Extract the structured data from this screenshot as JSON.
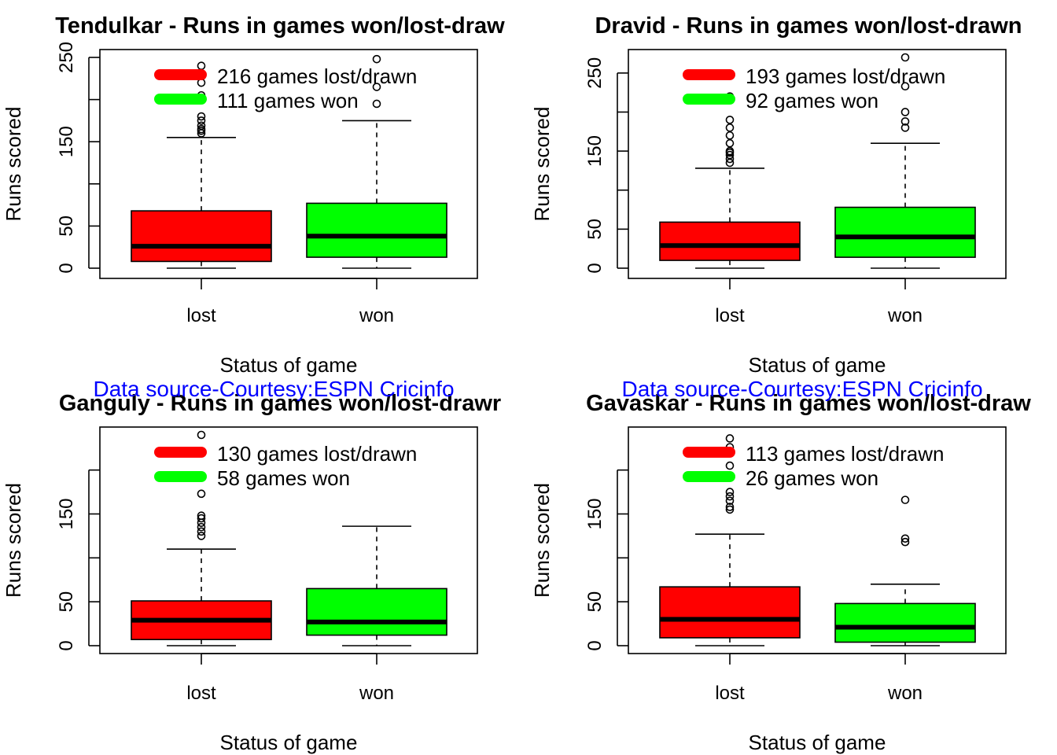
{
  "figure": {
    "source_note": "Data source-Courtesy:ESPN Cricinfo",
    "source_color": "#0000ff"
  },
  "chart_data": [
    {
      "type": "box",
      "title": "Tendulkar - Runs in games won/lost-draw",
      "xlabel": "Status of game",
      "ylabel": "Runs scored",
      "categories": [
        "lost",
        "won"
      ],
      "ylim": [
        0,
        250
      ],
      "yticks": [
        0,
        50,
        100,
        150,
        200,
        250
      ],
      "ytick_labels": [
        "0",
        "50",
        "",
        "150",
        "",
        "250"
      ],
      "boxes": [
        {
          "category": "lost",
          "color": "#ff0000",
          "min": 0,
          "q1": 8,
          "median": 26,
          "q3": 68,
          "max": 155,
          "outliers": [
            160,
            163,
            165,
            169,
            175,
            180,
            200,
            205,
            220,
            240
          ]
        },
        {
          "category": "won",
          "color": "#00ff00",
          "min": 0,
          "q1": 13,
          "median": 38,
          "q3": 77,
          "max": 175,
          "outliers": [
            195,
            215,
            248
          ]
        }
      ],
      "legend": [
        {
          "label": "216 games lost/drawn",
          "color": "#ff0000"
        },
        {
          "label": "111 games won",
          "color": "#00ff00"
        }
      ]
    },
    {
      "type": "box",
      "title": "Dravid - Runs in games won/lost-drawn",
      "xlabel": "Status of game",
      "ylabel": "Runs scored",
      "categories": [
        "lost",
        "won"
      ],
      "ylim": [
        0,
        270
      ],
      "yticks": [
        0,
        50,
        100,
        150,
        200,
        250
      ],
      "ytick_labels": [
        "0",
        "50",
        "",
        "150",
        "",
        "250"
      ],
      "boxes": [
        {
          "category": "lost",
          "color": "#ff0000",
          "min": 0,
          "q1": 10,
          "median": 29,
          "q3": 59,
          "max": 128,
          "outliers": [
            135,
            140,
            145,
            148,
            150,
            160,
            170,
            180,
            190,
            220
          ]
        },
        {
          "category": "won",
          "color": "#00ff00",
          "min": 0,
          "q1": 14,
          "median": 40,
          "q3": 78,
          "max": 160,
          "outliers": [
            180,
            188,
            200,
            233,
            270
          ]
        }
      ],
      "legend": [
        {
          "label": "193 games lost/drawn",
          "color": "#ff0000"
        },
        {
          "label": "92 games won",
          "color": "#00ff00"
        }
      ]
    },
    {
      "type": "box",
      "title": "Ganguly - Runs in games won/lost-drawr",
      "xlabel": "Status of game",
      "ylabel": "Runs scored",
      "categories": [
        "lost",
        "won"
      ],
      "ylim": [
        0,
        240
      ],
      "yticks": [
        0,
        50,
        100,
        150,
        200
      ],
      "ytick_labels": [
        "0",
        "50",
        "",
        "150",
        ""
      ],
      "boxes": [
        {
          "category": "lost",
          "color": "#ff0000",
          "min": 0,
          "q1": 7,
          "median": 29,
          "q3": 51,
          "max": 110,
          "outliers": [
            125,
            130,
            135,
            140,
            145,
            148,
            173,
            240
          ]
        },
        {
          "category": "won",
          "color": "#00ff00",
          "min": 0,
          "q1": 12,
          "median": 27,
          "q3": 65,
          "max": 136,
          "outliers": []
        }
      ],
      "legend": [
        {
          "label": "130 games lost/drawn",
          "color": "#ff0000"
        },
        {
          "label": "58 games won",
          "color": "#00ff00"
        }
      ]
    },
    {
      "type": "box",
      "title": "Gavaskar - Runs in games won/lost-draw",
      "xlabel": "Status of game",
      "ylabel": "Runs scored",
      "categories": [
        "lost",
        "won"
      ],
      "ylim": [
        0,
        240
      ],
      "yticks": [
        0,
        50,
        100,
        150,
        200
      ],
      "ytick_labels": [
        "0",
        "50",
        "",
        "150",
        ""
      ],
      "boxes": [
        {
          "category": "lost",
          "color": "#ff0000",
          "min": 0,
          "q1": 9,
          "median": 30,
          "q3": 67,
          "max": 127,
          "outliers": [
            155,
            158,
            165,
            170,
            175,
            205,
            220,
            226,
            236
          ]
        },
        {
          "category": "won",
          "color": "#00ff00",
          "min": 0,
          "q1": 4,
          "median": 21,
          "q3": 48,
          "max": 70,
          "outliers": [
            118,
            122,
            166
          ]
        }
      ],
      "legend": [
        {
          "label": "113 games lost/drawn",
          "color": "#ff0000"
        },
        {
          "label": "26 games won",
          "color": "#00ff00"
        }
      ]
    }
  ]
}
